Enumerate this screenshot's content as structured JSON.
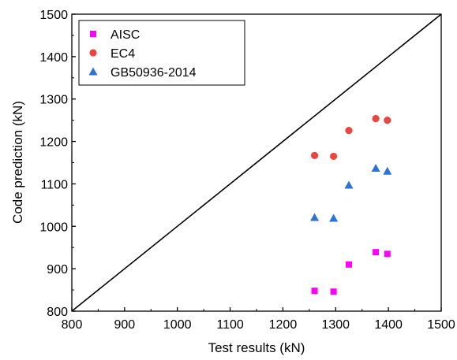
{
  "chart_data": {
    "type": "scatter",
    "title": "",
    "xlabel": "Test results (kN)",
    "ylabel": "Code prediction (kN)",
    "xlim": [
      800,
      1500
    ],
    "ylim": [
      800,
      1500
    ],
    "xticks": [
      800,
      900,
      1000,
      1100,
      1200,
      1300,
      1400,
      1500
    ],
    "yticks": [
      800,
      900,
      1000,
      1100,
      1200,
      1300,
      1400,
      1500
    ],
    "grid": false,
    "legend_position": "top-left",
    "reference_line": {
      "from": [
        800,
        800
      ],
      "to": [
        1500,
        1500
      ],
      "color": "#000000"
    },
    "series": [
      {
        "name": "AISC",
        "marker": "square",
        "color": "#ff00ff",
        "x": [
          1260,
          1296,
          1325,
          1376,
          1398
        ],
        "y": [
          848,
          846,
          910,
          939,
          935
        ]
      },
      {
        "name": "EC4",
        "marker": "circle",
        "color": "#e8473f",
        "x": [
          1260,
          1296,
          1325,
          1376,
          1398
        ],
        "y": [
          1167,
          1165,
          1226,
          1254,
          1250
        ]
      },
      {
        "name": "GB50936-2014",
        "marker": "triangle",
        "color": "#2a74d8",
        "x": [
          1260,
          1296,
          1325,
          1376,
          1398
        ],
        "y": [
          1021,
          1019,
          1097,
          1137,
          1130
        ]
      }
    ]
  }
}
